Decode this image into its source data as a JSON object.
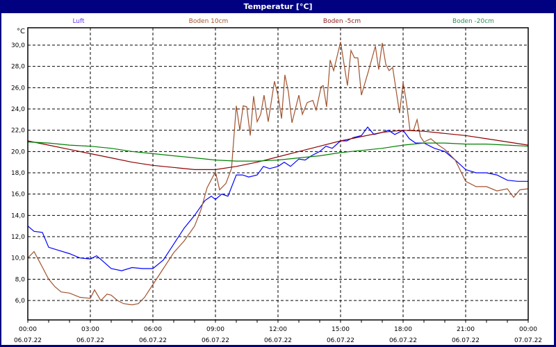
{
  "window": {
    "title": "Temperatur [°C]"
  },
  "chart_data": {
    "type": "line",
    "title": "Temperatur [°C]",
    "ylabel": "°C",
    "ylim": [
      4.1,
      31.5
    ],
    "xlim_hours": [
      0,
      24
    ],
    "grid": true,
    "legend_placement": "top",
    "y_ticks": [
      "6,0",
      "8,0",
      "10,0",
      "12,0",
      "14,0",
      "16,0",
      "18,0",
      "20,0",
      "22,0",
      "24,0",
      "26,0",
      "28,0",
      "30,0"
    ],
    "y_tick_values": [
      6,
      8,
      10,
      12,
      14,
      16,
      18,
      20,
      22,
      24,
      26,
      28,
      30
    ],
    "x_ticks": [
      {
        "time": "00:00",
        "date": "06.07.22"
      },
      {
        "time": "03:00",
        "date": "06.07.22"
      },
      {
        "time": "06:00",
        "date": "06.07.22"
      },
      {
        "time": "09:00",
        "date": "06.07.22"
      },
      {
        "time": "12:00",
        "date": "06.07.22"
      },
      {
        "time": "15:00",
        "date": "06.07.22"
      },
      {
        "time": "18:00",
        "date": "06.07.22"
      },
      {
        "time": "21:00",
        "date": "06.07.22"
      },
      {
        "time": "00:00",
        "date": "07.07.22"
      }
    ],
    "series": [
      {
        "name": "Luft",
        "color": "#0000ff",
        "legend_color": "#6633ff",
        "x": [
          0,
          0.3,
          0.7,
          1,
          1.5,
          2,
          2.5,
          3,
          3.3,
          3.6,
          4,
          4.5,
          5,
          5.5,
          6,
          6.5,
          7,
          7.5,
          8,
          8.5,
          8.8,
          9,
          9.3,
          9.6,
          10,
          10.3,
          10.6,
          11,
          11.3,
          11.6,
          12,
          12.3,
          12.6,
          13,
          13.3,
          13.6,
          14,
          14.3,
          14.6,
          15,
          15.3,
          15.6,
          16,
          16.3,
          16.6,
          17,
          17.3,
          17.6,
          18,
          18.3,
          18.6,
          19,
          19.5,
          20,
          20.5,
          21,
          21.5,
          22,
          22.5,
          23,
          23.5,
          24
        ],
        "y": [
          13.0,
          12.5,
          12.4,
          11.0,
          10.7,
          10.4,
          10.0,
          9.9,
          10.2,
          9.7,
          9.0,
          8.8,
          9.1,
          9.0,
          9.0,
          9.8,
          11.3,
          12.8,
          14.0,
          15.4,
          15.8,
          15.5,
          16.0,
          15.8,
          17.8,
          17.8,
          17.6,
          17.8,
          18.6,
          18.4,
          18.6,
          19.0,
          18.6,
          19.3,
          19.2,
          19.6,
          20.0,
          20.5,
          20.3,
          21.0,
          21.0,
          21.3,
          21.5,
          22.3,
          21.6,
          21.8,
          22.0,
          21.6,
          22.0,
          21.2,
          20.8,
          20.8,
          20.3,
          20.0,
          19.2,
          18.3,
          18.0,
          18.0,
          17.8,
          17.3,
          17.2,
          17.2
        ]
      },
      {
        "name": "Boden 10cm",
        "color": "#a0522d",
        "legend_color": "#a0522d",
        "x": [
          0,
          0.3,
          0.6,
          1,
          1.3,
          1.6,
          2,
          2.5,
          3,
          3.2,
          3.5,
          3.8,
          4,
          4.3,
          4.6,
          5,
          5.3,
          5.6,
          6,
          6.5,
          7,
          7.5,
          8,
          8.3,
          8.6,
          9,
          9.2,
          9.5,
          9.77,
          10,
          10.17,
          10.33,
          10.5,
          10.67,
          10.83,
          11,
          11.17,
          11.33,
          11.53,
          11.83,
          12,
          12.17,
          12.33,
          12.5,
          12.67,
          13,
          13.17,
          13.4,
          13.67,
          13.83,
          14.07,
          14.17,
          14.33,
          14.5,
          14.67,
          15,
          15.33,
          15.5,
          15.67,
          15.83,
          16,
          16.33,
          16.67,
          16.83,
          17,
          17.17,
          17.33,
          17.5,
          17.83,
          18,
          18.17,
          18.33,
          18.5,
          18.67,
          18.83,
          19,
          19.33,
          19.7,
          20,
          20.5,
          21,
          21.5,
          22,
          22.5,
          23,
          23.3,
          23.6,
          24
        ],
        "y": [
          10.0,
          10.6,
          9.5,
          8.0,
          7.3,
          6.8,
          6.7,
          6.3,
          6.2,
          7.0,
          6.0,
          6.6,
          6.5,
          6.0,
          5.7,
          5.6,
          5.7,
          6.3,
          7.5,
          9.0,
          10.5,
          11.6,
          13.0,
          14.5,
          16.6,
          18.1,
          16.4,
          17.0,
          18.4,
          24.3,
          22.0,
          24.3,
          24.2,
          21.5,
          25.2,
          22.8,
          23.5,
          25.3,
          22.8,
          26.6,
          25.3,
          23.1,
          27.2,
          25.6,
          22.7,
          25.3,
          23.5,
          24.6,
          24.8,
          23.9,
          26.1,
          26.2,
          24.2,
          28.6,
          27.6,
          30.3,
          26.2,
          29.5,
          28.8,
          28.8,
          25.3,
          27.5,
          29.9,
          27.7,
          30.2,
          28.2,
          27.6,
          27.9,
          23.6,
          26.5,
          24.5,
          22.0,
          22.0,
          23.0,
          21.4,
          20.9,
          21.2,
          20.6,
          20.2,
          19.2,
          17.2,
          16.7,
          16.7,
          16.3,
          16.5,
          15.7,
          16.4,
          16.5
        ]
      },
      {
        "name": "Boden -5cm",
        "color": "#8b0000",
        "legend_color": "#8b1a1a",
        "x": [
          0,
          1,
          2,
          3,
          4,
          5,
          6,
          7,
          8,
          9,
          10,
          11,
          12,
          13,
          14,
          15,
          16,
          17,
          18,
          19,
          20,
          21,
          22,
          23,
          24
        ],
        "y": [
          21.0,
          20.6,
          20.2,
          19.8,
          19.4,
          19.0,
          18.7,
          18.5,
          18.3,
          18.3,
          18.6,
          19.0,
          19.5,
          20.0,
          20.5,
          21.0,
          21.4,
          21.8,
          22.0,
          21.9,
          21.7,
          21.5,
          21.2,
          20.9,
          20.6
        ]
      },
      {
        "name": "Boden -20cm",
        "color": "#008000",
        "legend_color": "#2e8b57",
        "x": [
          0,
          1,
          2,
          3,
          4,
          5,
          6,
          7,
          8,
          9,
          10,
          11,
          12,
          13,
          14,
          15,
          16,
          17,
          18,
          19,
          20,
          21,
          22,
          23,
          24
        ],
        "y": [
          20.9,
          20.8,
          20.6,
          20.5,
          20.3,
          20.0,
          19.8,
          19.6,
          19.4,
          19.2,
          19.1,
          19.1,
          19.2,
          19.4,
          19.6,
          19.9,
          20.1,
          20.3,
          20.6,
          20.8,
          20.8,
          20.7,
          20.7,
          20.6,
          20.5
        ]
      }
    ]
  }
}
